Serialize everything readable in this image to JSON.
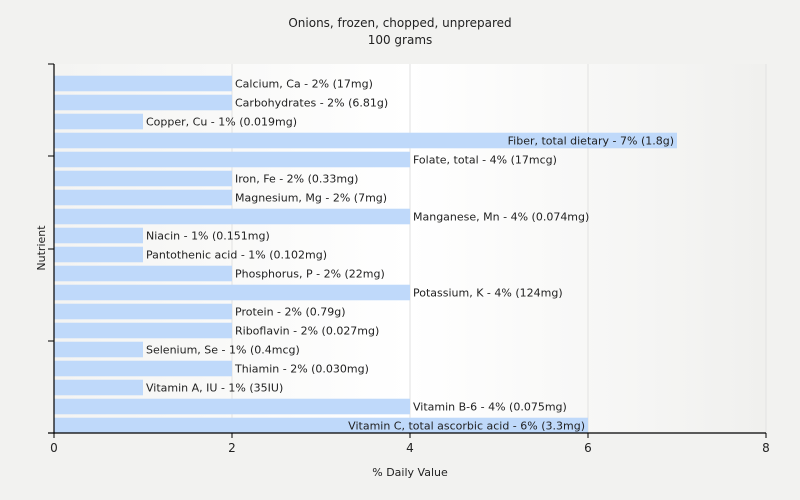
{
  "chart_data": {
    "type": "bar",
    "orientation": "horizontal",
    "title": "Onions, frozen, chopped, unprepared",
    "subtitle": "100 grams",
    "xlabel": "% Daily Value",
    "ylabel": "Nutrient",
    "xlim": [
      0,
      8
    ],
    "xticks": [
      0,
      2,
      4,
      6,
      8
    ],
    "grid": true,
    "bar_color": "#bfd9fa",
    "categories": [
      "Calcium, Ca",
      "Carbohydrates",
      "Copper, Cu",
      "Fiber, total dietary",
      "Folate, total",
      "Iron, Fe",
      "Magnesium, Mg",
      "Manganese, Mn",
      "Niacin",
      "Pantothenic acid",
      "Phosphorus, P",
      "Potassium, K",
      "Protein",
      "Riboflavin",
      "Selenium, Se",
      "Thiamin",
      "Vitamin A, IU",
      "Vitamin B-6",
      "Vitamin C, total ascorbic acid"
    ],
    "values": [
      2,
      2,
      1,
      7,
      4,
      2,
      2,
      4,
      1,
      1,
      2,
      4,
      2,
      2,
      1,
      2,
      1,
      4,
      6
    ],
    "data_labels": [
      "Calcium, Ca - 2% (17mg)",
      "Carbohydrates - 2% (6.81g)",
      "Copper, Cu - 1% (0.019mg)",
      "Fiber, total dietary - 7% (1.8g)",
      "Folate, total - 4% (17mcg)",
      "Iron, Fe - 2% (0.33mg)",
      "Magnesium, Mg - 2% (7mg)",
      "Manganese, Mn - 4% (0.074mg)",
      "Niacin - 1% (0.151mg)",
      "Pantothenic acid - 1% (0.102mg)",
      "Phosphorus, P - 2% (22mg)",
      "Potassium, K - 4% (124mg)",
      "Protein - 2% (0.79g)",
      "Riboflavin - 2% (0.027mg)",
      "Selenium, Se - 1% (0.4mcg)",
      "Thiamin - 2% (0.030mg)",
      "Vitamin A, IU - 1% (35IU)",
      "Vitamin B-6 - 4% (0.075mg)",
      "Vitamin C, total ascorbic acid - 6% (3.3mg)"
    ]
  }
}
